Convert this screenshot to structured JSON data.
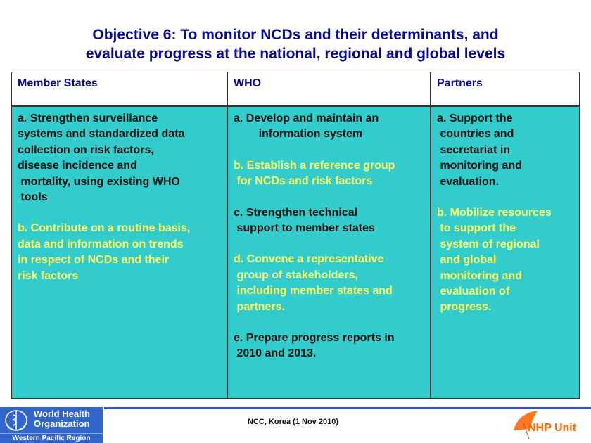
{
  "title": "Objective 6: To monitor NCDs and their determinants, and\nevaluate progress at the national, regional and global levels",
  "table": {
    "headers": [
      "Member States",
      "WHO",
      "Partners"
    ],
    "columns": [
      [
        {
          "text": "a. Strengthen surveillance\nsystems and standardized data\ncollection on risk factors,\ndisease incidence and\n mortality, using existing WHO\n tools",
          "highlight": false
        },
        {
          "text": "b. Contribute on a routine basis,\ndata and information on trends\nin respect of NCDs and their\nrisk factors",
          "highlight": true
        }
      ],
      [
        {
          "text": "a. Develop and maintain an\n        information system",
          "highlight": false
        },
        {
          "text": "b. Establish a reference group\n for NCDs and risk factors",
          "highlight": true
        },
        {
          "text": "c. Strengthen technical\n support to member states",
          "highlight": false
        },
        {
          "text": "d. Convene a representative\n group of stakeholders,\n including member states and\n partners.",
          "highlight": true
        },
        {
          "text": "e. Prepare progress reports in\n 2010 and 2013.",
          "highlight": false
        }
      ],
      [
        {
          "text": "a. Support the\n countries and\n secretariat in\n monitoring and\n evaluation.",
          "highlight": false
        },
        {
          "text": "b. Mobilize resources\n to support the\n system of regional\n and global\n monitoring and\n evaluation of\n progress.",
          "highlight": true
        }
      ]
    ]
  },
  "footer": {
    "who_logo": {
      "line1": "World Health\nOrganization",
      "line2": "Western Pacific Region",
      "icon": "who-emblem-icon"
    },
    "center_text": "NCC, Korea (1 Nov 2010)",
    "nhp_logo": {
      "text": "NHP Unit",
      "icon": "umbrella-icon"
    }
  },
  "colors": {
    "title": "#0a0a99",
    "cell_bg": "#33cccc",
    "highlight_text": "#ffff66",
    "who_blue": "#3366cc",
    "nhp_orange": "#ff6600"
  }
}
